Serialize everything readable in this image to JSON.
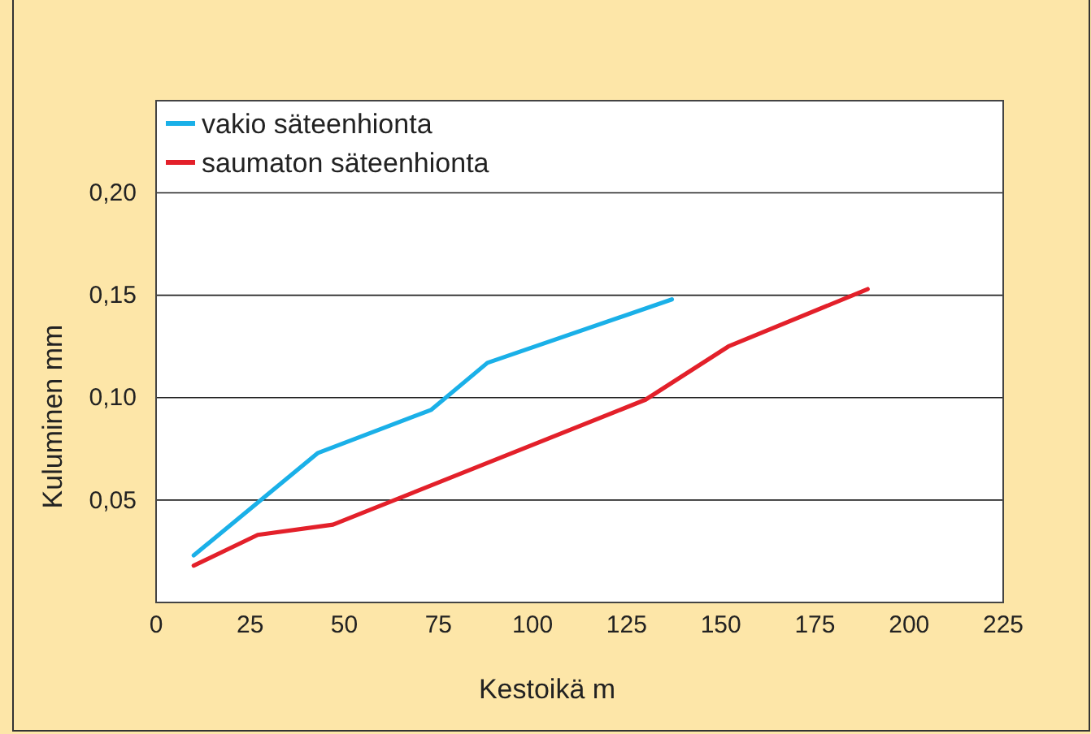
{
  "chart_data": {
    "type": "line",
    "xlabel": "Kestoikä m",
    "ylabel": "Kuluminen mm",
    "xlim": [
      0,
      225
    ],
    "xticks": [
      0,
      25,
      50,
      75,
      100,
      125,
      150,
      175,
      200,
      225
    ],
    "ylim": [
      0,
      0.245
    ],
    "yticks": [
      {
        "value": 0.05,
        "label": "0,05"
      },
      {
        "value": 0.1,
        "label": "0,10"
      },
      {
        "value": 0.15,
        "label": "0,15"
      },
      {
        "value": 0.2,
        "label": "0,20"
      }
    ],
    "grid": "y",
    "legend": "top left",
    "series": [
      {
        "name": "vakio säteenhionta",
        "color": "#1ab0e8",
        "x": [
          10,
          43,
          73,
          88,
          137
        ],
        "values": [
          0.023,
          0.073,
          0.094,
          0.117,
          0.148
        ]
      },
      {
        "name": "saumaton säteenhionta",
        "color": "#e3202a",
        "x": [
          10,
          27,
          47,
          130,
          152,
          189
        ],
        "values": [
          0.018,
          0.033,
          0.038,
          0.099,
          0.125,
          0.153
        ]
      }
    ]
  }
}
